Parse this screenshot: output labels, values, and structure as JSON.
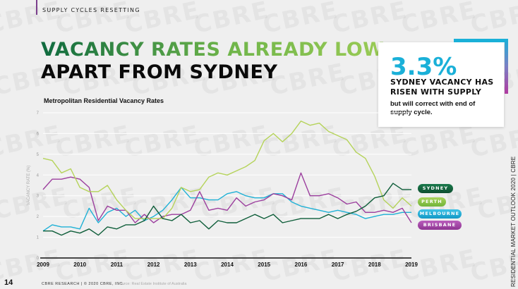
{
  "header": {
    "section": "SUPPLY CYCLES RESETTING",
    "title_line1": "VACANCY RATES ALREADY LOW",
    "title_line2": "APART FROM SYDNEY"
  },
  "callout": {
    "stat": "3.3%",
    "headline": "SYDNEY VACANCY HAS RISEN WITH SUPPLY",
    "body": "but will correct with end of supply cycle."
  },
  "footer": {
    "page": "14",
    "copyright": "CBRE RESEARCH | © 2020 CBRE, INC.",
    "source": "Source: Real Estate Institute of Australia",
    "side": "RESIDENTIAL MARKET OUTLOOK 2020 | CBRE"
  },
  "watermark": "CBRE",
  "chart_data": {
    "type": "line",
    "title": "Metropolitan Residential Vacancy Rates",
    "xlabel": "",
    "ylabel": "VACANCY RATE (%)",
    "xlim": [
      2009,
      2019
    ],
    "ylim": [
      0,
      7
    ],
    "yticks": [
      "0",
      "1",
      "2",
      "3",
      "4",
      "5",
      "6",
      "7"
    ],
    "xticks": [
      "2009",
      "2010",
      "2011",
      "2012",
      "2013",
      "2014",
      "2015",
      "2016",
      "2017",
      "2018",
      "2019"
    ],
    "x_start": 2009,
    "x_step": 0.25,
    "grid": true,
    "legend_position": "right",
    "series": [
      {
        "name": "SYDNEY",
        "color": "#0f5e3a",
        "values": [
          1.3,
          1.3,
          1.1,
          1.3,
          1.2,
          1.4,
          1.1,
          1.5,
          1.4,
          1.6,
          1.6,
          1.8,
          2.5,
          1.9,
          1.8,
          2.1,
          1.7,
          1.8,
          1.4,
          1.8,
          1.7,
          1.7,
          1.9,
          2.1,
          1.9,
          2.1,
          1.7,
          1.8,
          1.9,
          1.9,
          1.9,
          2.1,
          1.9,
          2.1,
          2.25,
          2.5,
          2.9,
          3.0,
          3.6,
          3.3,
          3.3
        ]
      },
      {
        "name": "PERTH",
        "color": "#b5d35a",
        "values": [
          4.8,
          4.7,
          4.1,
          4.3,
          3.4,
          3.2,
          3.2,
          3.5,
          2.8,
          2.3,
          1.9,
          1.9,
          1.9,
          1.9,
          2.4,
          3.4,
          3.2,
          3.3,
          3.9,
          4.1,
          4.0,
          4.2,
          4.4,
          4.7,
          5.65,
          6.0,
          5.6,
          6.0,
          6.6,
          6.4,
          6.5,
          6.1,
          5.9,
          5.7,
          5.1,
          4.8,
          3.95,
          2.8,
          2.4,
          2.9,
          2.5
        ]
      },
      {
        "name": "MELBOURNE",
        "color": "#1fb1d6",
        "values": [
          1.3,
          1.6,
          1.5,
          1.5,
          1.4,
          2.4,
          1.7,
          2.2,
          2.4,
          2.0,
          2.3,
          1.8,
          2.0,
          2.3,
          2.8,
          3.4,
          2.9,
          2.9,
          2.8,
          2.8,
          3.1,
          3.2,
          3.0,
          2.9,
          2.9,
          3.1,
          3.1,
          2.7,
          2.5,
          2.4,
          2.3,
          2.2,
          2.3,
          2.2,
          2.1,
          1.9,
          2.0,
          2.1,
          2.1,
          2.2,
          2.2
        ]
      },
      {
        "name": "BRISBANE",
        "color": "#9c3f9e",
        "values": [
          3.3,
          3.8,
          3.8,
          3.9,
          3.8,
          3.4,
          1.8,
          2.5,
          2.3,
          2.3,
          1.7,
          2.1,
          1.7,
          2.0,
          2.1,
          2.1,
          2.3,
          3.2,
          2.3,
          2.4,
          2.3,
          2.9,
          2.5,
          2.7,
          2.8,
          3.1,
          3.0,
          2.8,
          4.1,
          3.0,
          3.0,
          3.1,
          2.9,
          2.6,
          2.7,
          2.2,
          2.2,
          2.3,
          2.2,
          2.4,
          1.7
        ]
      }
    ]
  }
}
